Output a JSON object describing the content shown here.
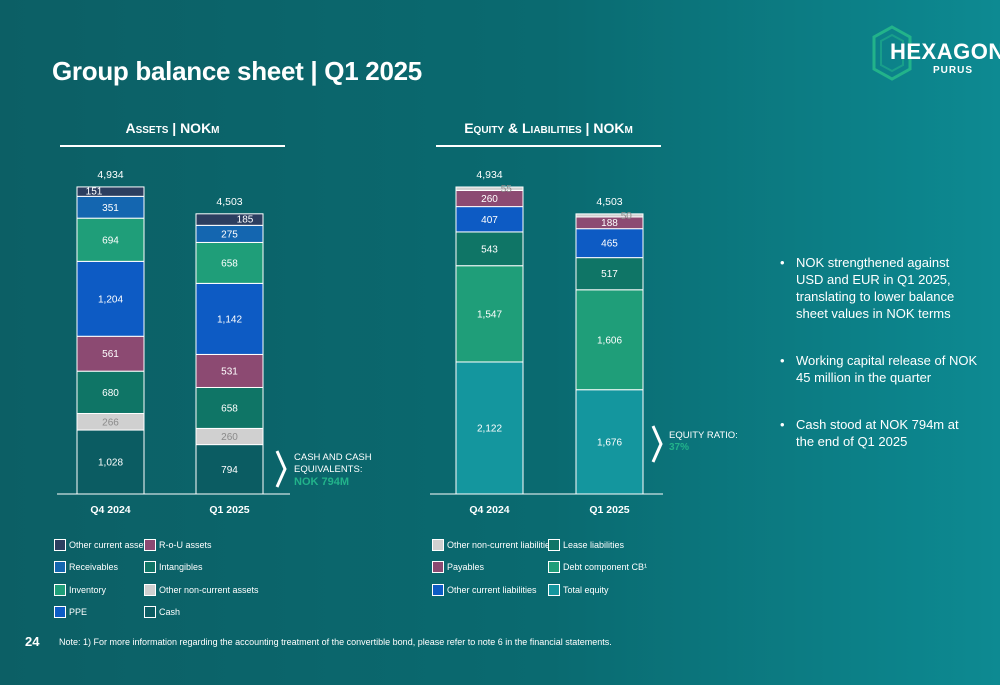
{
  "title": "Group balance sheet | Q1 2025",
  "logo": {
    "name": "HEXAGON",
    "sub": "PURUS"
  },
  "colors": {
    "other_current_assets": "#2c3e60",
    "receivables": "#1466b0",
    "inventory": "#1f9e79",
    "ppe": "#0d5bc4",
    "rou_assets": "#8c4a72",
    "intangibles": "#0f7566",
    "other_noncurrent_assets": "#d0d0d0",
    "cash": "#0b5c62",
    "other_noncurrent_liabilities": "#d0d0d0",
    "payables": "#8c4a72",
    "other_current_liabilities": "#0d5bc4",
    "lease_liabilities": "#0f7566",
    "debt_component_cb": "#1f9e79",
    "total_equity": "#14969e"
  },
  "chart_data": [
    {
      "type": "bar",
      "stacked": true,
      "title": "Assets | NOKm",
      "categories": [
        "Q4 2024",
        "Q1 2025"
      ],
      "totals": [
        "4,934",
        "4,503"
      ],
      "series": [
        {
          "key": "cash",
          "name": "Cash",
          "values": [
            1028,
            794
          ]
        },
        {
          "key": "other_noncurrent_assets",
          "name": "Other non-current assets",
          "values": [
            266,
            260
          ]
        },
        {
          "key": "intangibles",
          "name": "Intangibles",
          "values": [
            680,
            658
          ]
        },
        {
          "key": "rou_assets",
          "name": "R-o-U assets",
          "values": [
            561,
            531
          ]
        },
        {
          "key": "ppe",
          "name": "PPE",
          "values": [
            1204,
            1142
          ]
        },
        {
          "key": "inventory",
          "name": "Inventory",
          "values": [
            694,
            658
          ]
        },
        {
          "key": "receivables",
          "name": "Receivables",
          "values": [
            351,
            275
          ]
        },
        {
          "key": "other_current_assets",
          "name": "Other current assets",
          "values": [
            151,
            185
          ]
        }
      ],
      "ylim": [
        0,
        4934
      ]
    },
    {
      "type": "bar",
      "stacked": true,
      "title": "Equity & Liabilities | NOKm",
      "categories": [
        "Q4 2024",
        "Q1 2025"
      ],
      "totals": [
        "4,934",
        "4,503"
      ],
      "series": [
        {
          "key": "total_equity",
          "name": "Total equity",
          "values": [
            2122,
            1676
          ]
        },
        {
          "key": "debt_component_cb",
          "name": "Debt component CB¹",
          "values": [
            1547,
            1606
          ]
        },
        {
          "key": "lease_liabilities",
          "name": "Lease liabilities",
          "values": [
            543,
            517
          ]
        },
        {
          "key": "other_current_liabilities",
          "name": "Other current liabilities",
          "values": [
            407,
            465
          ]
        },
        {
          "key": "payables",
          "name": "Payables",
          "values": [
            260,
            188
          ]
        },
        {
          "key": "other_noncurrent_liabilities",
          "name": "Other non-current liabilities",
          "values": [
            55,
            50
          ]
        }
      ],
      "ylim": [
        0,
        4934
      ]
    }
  ],
  "callouts": {
    "cash_label": "CASH AND CASH EQUIVALENTS:",
    "cash_value": "NOK 794m",
    "equity_label": "EQUITY RATIO:",
    "equity_value": "37%"
  },
  "legend_assets": [
    "Other current assets",
    "R-o-U assets",
    "Receivables",
    "Intangibles",
    "Inventory",
    "Other non-current assets",
    "PPE",
    "Cash"
  ],
  "legend_liabilities": [
    "Other non-current liabilities",
    "Lease liabilities",
    "Payables",
    "Debt component CB¹",
    "Other current liabilities",
    "Total equity"
  ],
  "bullets": [
    "NOK strengthened against USD and EUR in Q1 2025, translating to lower balance sheet values in NOK terms",
    "Working capital release of NOK 45 million in the quarter",
    "Cash stood at NOK 794m at the end of Q1 2025"
  ],
  "page_number": "24",
  "note": "Note: 1) For more information regarding the accounting treatment of the convertible bond, please refer to note 6 in the financial statements."
}
